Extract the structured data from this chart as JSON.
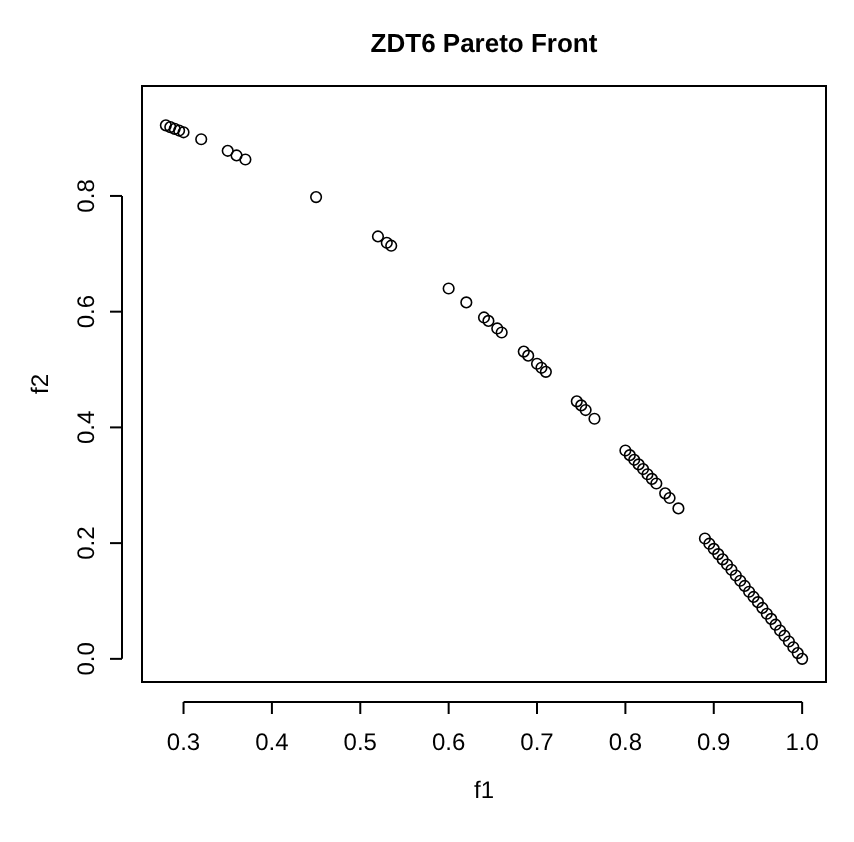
{
  "chart_data": {
    "type": "scatter",
    "title": "ZDT6 Pareto Front",
    "xlabel": "f1",
    "ylabel": "f2",
    "marker": "circle",
    "grid": false,
    "xlim": [
      0.253,
      1.027
    ],
    "ylim": [
      -0.04,
      0.99
    ],
    "xticks": [
      {
        "value": 0.3,
        "label": "0.3"
      },
      {
        "value": 0.4,
        "label": "0.4"
      },
      {
        "value": 0.5,
        "label": "0.5"
      },
      {
        "value": 0.6,
        "label": "0.6"
      },
      {
        "value": 0.7,
        "label": "0.7"
      },
      {
        "value": 0.8,
        "label": "0.8"
      },
      {
        "value": 0.9,
        "label": "0.9"
      },
      {
        "value": 1.0,
        "label": "1.0"
      }
    ],
    "yticks": [
      {
        "value": 0,
        "label": "0.0"
      },
      {
        "value": 0.2,
        "label": "0.2"
      },
      {
        "value": 0.4,
        "label": "0.4"
      },
      {
        "value": 0.6,
        "label": "0.6"
      },
      {
        "value": 0.8,
        "label": "0.8"
      }
    ],
    "series": [
      {
        "color": "#000000",
        "x": [
          0.28,
          0.285,
          0.29,
          0.295,
          0.3,
          0.32,
          0.35,
          0.36,
          0.37,
          0.45,
          0.52,
          0.53,
          0.535,
          0.6,
          0.62,
          0.64,
          0.645,
          0.655,
          0.66,
          0.685,
          0.69,
          0.7,
          0.705,
          0.71,
          0.745,
          0.75,
          0.755,
          0.765,
          0.8,
          0.805,
          0.81,
          0.815,
          0.82,
          0.825,
          0.83,
          0.835,
          0.845,
          0.85,
          0.86,
          0.89,
          0.895,
          0.9,
          0.905,
          0.91,
          0.915,
          0.92,
          0.925,
          0.93,
          0.935,
          0.94,
          0.945,
          0.95,
          0.955,
          0.96,
          0.965,
          0.97,
          0.975,
          0.98,
          0.985,
          0.99,
          0.995,
          1.0
        ],
        "values": [
          0.922,
          0.919,
          0.916,
          0.913,
          0.91,
          0.898,
          0.878,
          0.87,
          0.863,
          0.798,
          0.73,
          0.719,
          0.714,
          0.64,
          0.616,
          0.59,
          0.584,
          0.571,
          0.564,
          0.531,
          0.524,
          0.51,
          0.503,
          0.496,
          0.445,
          0.438,
          0.43,
          0.415,
          0.36,
          0.352,
          0.344,
          0.336,
          0.328,
          0.319,
          0.311,
          0.303,
          0.286,
          0.278,
          0.26,
          0.208,
          0.199,
          0.19,
          0.181,
          0.172,
          0.163,
          0.154,
          0.144,
          0.135,
          0.126,
          0.116,
          0.107,
          0.098,
          0.088,
          0.078,
          0.069,
          0.059,
          0.049,
          0.04,
          0.03,
          0.02,
          0.01,
          0
        ]
      }
    ]
  }
}
